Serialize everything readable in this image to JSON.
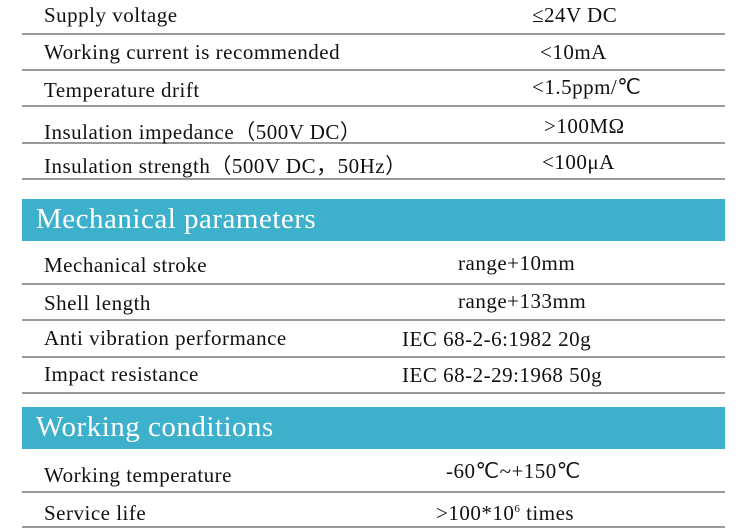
{
  "electrical_rows": [
    {
      "label": "Supply voltage",
      "value": "≤24V DC"
    },
    {
      "label": "Working current is recommended",
      "value": "<10mA"
    },
    {
      "label": "Temperature drift",
      "value": "<1.5ppm/℃"
    },
    {
      "label": "Insulation impedance（500V DC）",
      "value": ">100MΩ"
    },
    {
      "label": "Insulation strength（500V DC，50Hz）",
      "value": "<100μA"
    }
  ],
  "mechanical": {
    "title": "Mechanical parameters",
    "rows": [
      {
        "label": "Mechanical stroke",
        "value": "range+10mm"
      },
      {
        "label": "Shell length",
        "value": "range+133mm"
      },
      {
        "label": "Anti vibration performance",
        "value": "IEC 68-2-6:1982 20g"
      },
      {
        "label": "Impact resistance",
        "value": "IEC 68-2-29:1968 50g"
      }
    ]
  },
  "working": {
    "title": "Working conditions",
    "rows": [
      {
        "label": "Working temperature",
        "value": "-60℃~+150℃"
      },
      {
        "label": "Service life",
        "value_prefix": ">100*10",
        "value_exp": "6",
        "value_suffix": " times"
      }
    ]
  },
  "colors": {
    "header_bg": "#3db0cc",
    "divider": "#9a9a9a"
  }
}
